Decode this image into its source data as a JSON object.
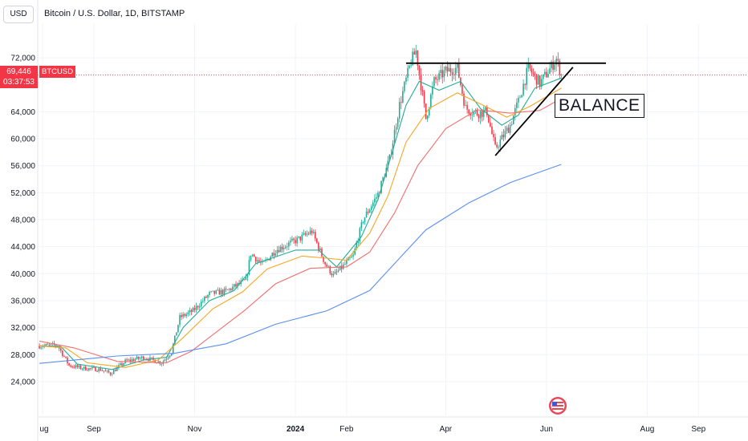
{
  "header": {
    "currency": "USD",
    "title": "Bitcoin / U.S. Dollar, 1D, BITSTAMP"
  },
  "price_label": {
    "price": "69,446",
    "countdown": "03:37:53",
    "symbol": "BTCUSD"
  },
  "annotation": {
    "text": "BALANCE"
  },
  "colors": {
    "up": "#22ab94",
    "down": "#f23645",
    "ema_fast": "#22ab94",
    "ema_mid": "#f5a623",
    "ema_slow": "#ef6f6c",
    "ma_long": "#5b8ff0",
    "current_price": "#f23645",
    "drawing": "#000000"
  },
  "chart_data": {
    "type": "candlestick",
    "title": "Bitcoin / U.S. Dollar, 1D, BITSTAMP",
    "y_ticks": [
      24000,
      28000,
      32000,
      36000,
      40000,
      44000,
      48000,
      52000,
      56000,
      60000,
      64000,
      72000
    ],
    "y_tick_labels": [
      "24,000",
      "28,000",
      "32,000",
      "36,000",
      "40,000",
      "44,000",
      "48,000",
      "52,000",
      "56,000",
      "60,000",
      "64,000",
      "72,000"
    ],
    "ylim": [
      19000,
      77000
    ],
    "x_ticks": [
      {
        "label": "ug",
        "date": "2023-08-01",
        "bold": false
      },
      {
        "label": "Sep",
        "date": "2023-09-01",
        "bold": false
      },
      {
        "label": "Nov",
        "date": "2023-11-01",
        "bold": false
      },
      {
        "label": "2024",
        "date": "2024-01-01",
        "bold": true
      },
      {
        "label": "Feb",
        "date": "2024-02-01",
        "bold": false
      },
      {
        "label": "Apr",
        "date": "2024-04-01",
        "bold": false
      },
      {
        "label": "Jun",
        "date": "2024-06-01",
        "bold": false
      },
      {
        "label": "Aug",
        "date": "2024-08-01",
        "bold": false
      },
      {
        "label": "Sep",
        "date": "2024-09-01",
        "bold": false
      }
    ],
    "xlim": [
      "2023-07-29",
      "2024-10-01"
    ],
    "current_price": 69446,
    "price_path": [
      [
        "2023-07-30",
        29300
      ],
      [
        "2023-08-10",
        29400
      ],
      [
        "2023-08-17",
        26400
      ],
      [
        "2023-08-25",
        26000
      ],
      [
        "2023-09-05",
        25800
      ],
      [
        "2023-09-11",
        25200
      ],
      [
        "2023-09-20",
        27000
      ],
      [
        "2023-10-01",
        27600
      ],
      [
        "2023-10-12",
        26800
      ],
      [
        "2023-10-18",
        28400
      ],
      [
        "2023-10-23",
        33500
      ],
      [
        "2023-10-31",
        34500
      ],
      [
        "2023-11-10",
        37000
      ],
      [
        "2023-11-20",
        37400
      ],
      [
        "2023-12-02",
        39000
      ],
      [
        "2023-12-05",
        43000
      ],
      [
        "2023-12-12",
        41300
      ],
      [
        "2023-12-20",
        43500
      ],
      [
        "2024-01-02",
        45000
      ],
      [
        "2024-01-11",
        46300
      ],
      [
        "2024-01-19",
        41500
      ],
      [
        "2024-01-24",
        39700
      ],
      [
        "2024-02-05",
        42600
      ],
      [
        "2024-02-11",
        48000
      ],
      [
        "2024-02-20",
        51800
      ],
      [
        "2024-02-27",
        57000
      ],
      [
        "2024-03-04",
        65000
      ],
      [
        "2024-03-11",
        71500
      ],
      [
        "2024-03-14",
        73000
      ],
      [
        "2024-03-20",
        63000
      ],
      [
        "2024-03-25",
        68500
      ],
      [
        "2024-04-01",
        70000
      ],
      [
        "2024-04-08",
        70500
      ],
      [
        "2024-04-13",
        64500
      ],
      [
        "2024-04-20",
        63800
      ],
      [
        "2024-04-26",
        64000
      ],
      [
        "2024-05-01",
        58500
      ],
      [
        "2024-05-10",
        62000
      ],
      [
        "2024-05-15",
        65500
      ],
      [
        "2024-05-21",
        70500
      ],
      [
        "2024-05-28",
        68200
      ],
      [
        "2024-06-04",
        70700
      ],
      [
        "2024-06-07",
        71800
      ],
      [
        "2024-06-10",
        69446
      ]
    ],
    "series": [
      {
        "color": "#22ab94",
        "points": [
          [
            "2023-07-30",
            29300
          ],
          [
            "2023-08-12",
            29200
          ],
          [
            "2023-08-22",
            26600
          ],
          [
            "2023-09-12",
            25800
          ],
          [
            "2023-10-01",
            27200
          ],
          [
            "2023-10-15",
            27600
          ],
          [
            "2023-10-25",
            32000
          ],
          [
            "2023-11-10",
            36000
          ],
          [
            "2023-11-25",
            37500
          ],
          [
            "2023-12-08",
            41500
          ],
          [
            "2024-01-01",
            43500
          ],
          [
            "2024-01-15",
            43500
          ],
          [
            "2024-01-26",
            41000
          ],
          [
            "2024-02-10",
            45500
          ],
          [
            "2024-02-20",
            51000
          ],
          [
            "2024-02-28",
            57500
          ],
          [
            "2024-03-08",
            65000
          ],
          [
            "2024-03-16",
            68500
          ],
          [
            "2024-03-28",
            67200
          ],
          [
            "2024-04-10",
            68500
          ],
          [
            "2024-04-22",
            64500
          ],
          [
            "2024-05-05",
            62000
          ],
          [
            "2024-05-15",
            63500
          ],
          [
            "2024-05-25",
            67500
          ],
          [
            "2024-06-10",
            69000
          ]
        ]
      },
      {
        "color": "#f5a623",
        "points": [
          [
            "2023-07-30",
            29300
          ],
          [
            "2023-08-15",
            29000
          ],
          [
            "2023-08-28",
            26800
          ],
          [
            "2023-09-20",
            26100
          ],
          [
            "2023-10-10",
            27200
          ],
          [
            "2023-10-25",
            30500
          ],
          [
            "2023-11-12",
            34800
          ],
          [
            "2023-11-30",
            37300
          ],
          [
            "2023-12-15",
            40700
          ],
          [
            "2024-01-05",
            42600
          ],
          [
            "2024-01-20",
            42300
          ],
          [
            "2024-02-01",
            42000
          ],
          [
            "2024-02-15",
            46000
          ],
          [
            "2024-02-26",
            51500
          ],
          [
            "2024-03-08",
            59500
          ],
          [
            "2024-03-22",
            64500
          ],
          [
            "2024-04-08",
            66800
          ],
          [
            "2024-04-25",
            64800
          ],
          [
            "2024-05-08",
            63200
          ],
          [
            "2024-05-22",
            64800
          ],
          [
            "2024-06-10",
            67500
          ]
        ]
      },
      {
        "color": "#ef6f6c",
        "points": [
          [
            "2023-07-30",
            30000
          ],
          [
            "2023-08-20",
            29000
          ],
          [
            "2023-09-15",
            27000
          ],
          [
            "2023-10-15",
            26800
          ],
          [
            "2023-10-30",
            28500
          ],
          [
            "2023-11-15",
            31500
          ],
          [
            "2023-12-01",
            34500
          ],
          [
            "2023-12-20",
            38500
          ],
          [
            "2024-01-10",
            40800
          ],
          [
            "2024-02-01",
            41000
          ],
          [
            "2024-02-15",
            43200
          ],
          [
            "2024-03-01",
            49000
          ],
          [
            "2024-03-15",
            56000
          ],
          [
            "2024-04-01",
            61500
          ],
          [
            "2024-04-20",
            64300
          ],
          [
            "2024-05-10",
            63800
          ],
          [
            "2024-05-28",
            64200
          ],
          [
            "2024-06-10",
            66000
          ]
        ]
      },
      {
        "color": "#5b8ff0",
        "points": [
          [
            "2023-07-30",
            26700
          ],
          [
            "2023-09-15",
            27800
          ],
          [
            "2023-10-20",
            28200
          ],
          [
            "2023-11-20",
            29600
          ],
          [
            "2023-12-20",
            32500
          ],
          [
            "2024-01-20",
            34500
          ],
          [
            "2024-02-15",
            37500
          ],
          [
            "2024-03-01",
            41500
          ],
          [
            "2024-03-20",
            46500
          ],
          [
            "2024-04-15",
            50500
          ],
          [
            "2024-05-10",
            53500
          ],
          [
            "2024-06-10",
            56200
          ]
        ]
      }
    ],
    "drawings": [
      {
        "type": "horizontal_segment",
        "from": [
          "2024-03-08",
          71200
        ],
        "to": [
          "2024-07-07",
          71200
        ]
      },
      {
        "type": "trendline",
        "from": [
          "2024-05-01",
          57500
        ],
        "to": [
          "2024-06-17",
          70600
        ]
      }
    ]
  }
}
